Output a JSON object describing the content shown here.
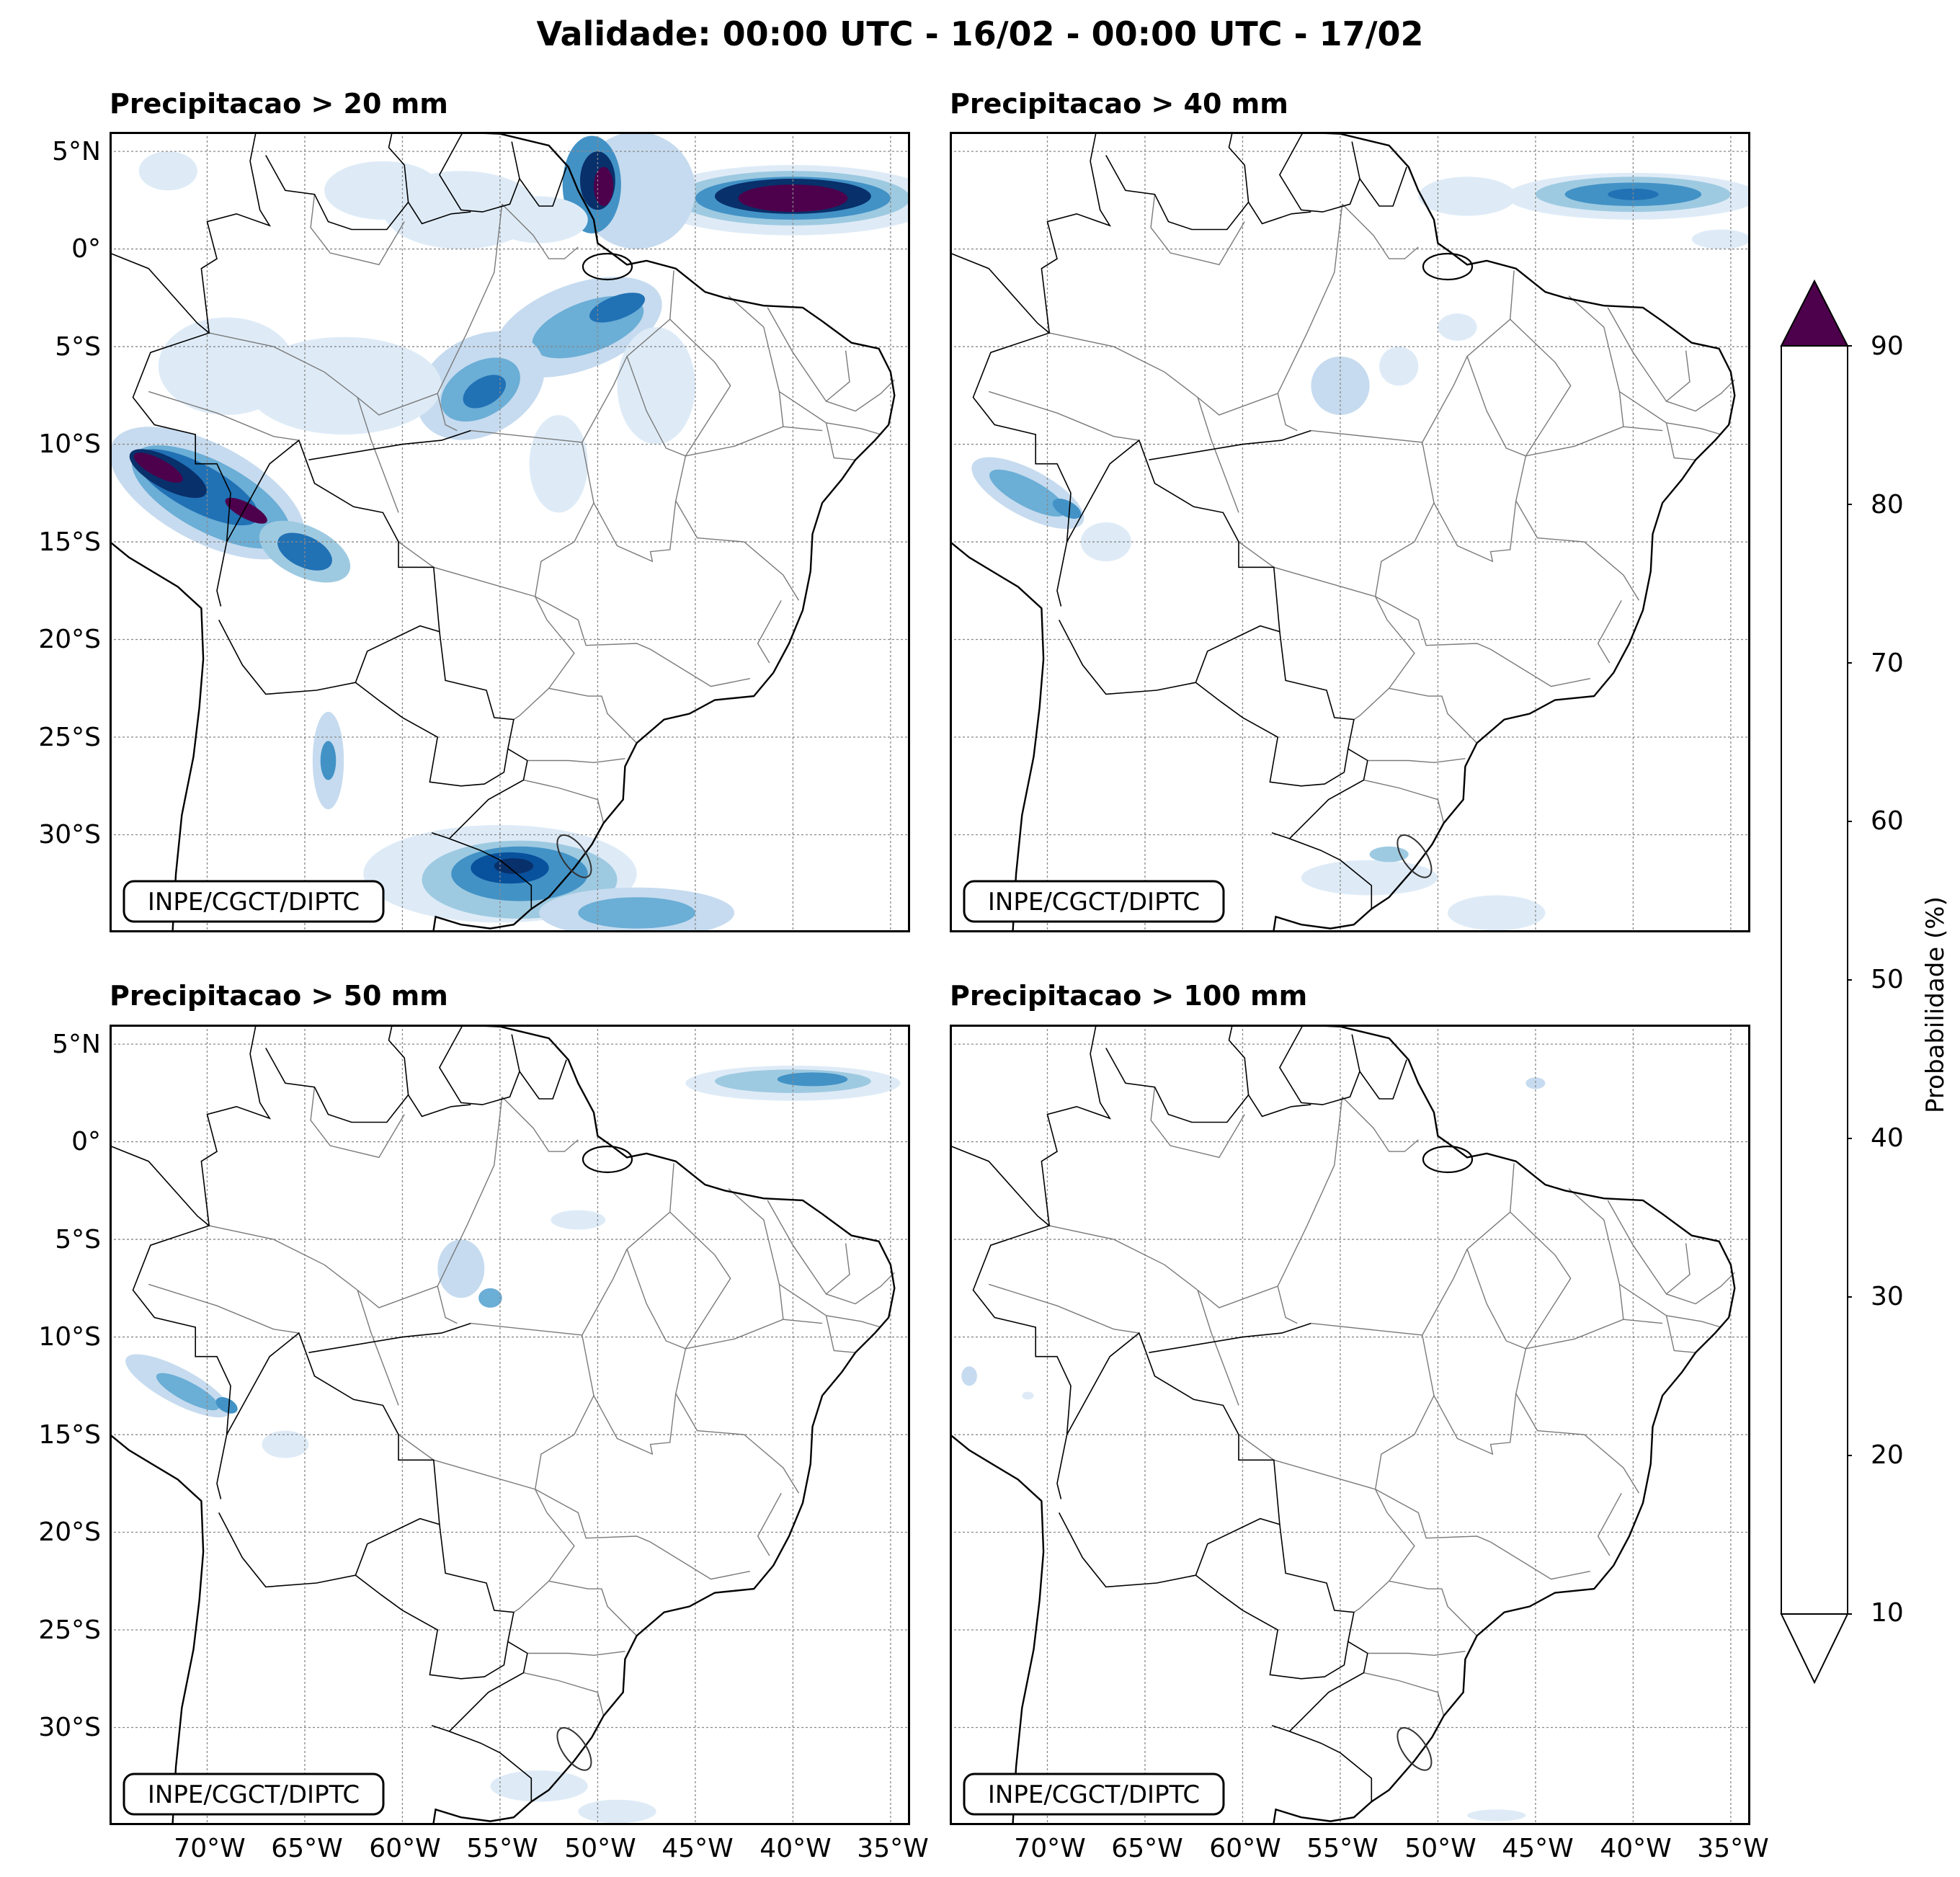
{
  "title": "Validade: 00:00 UTC - 16/02 - 00:00 UTC - 17/02",
  "credit": "INPE/CGCT/DIPTC",
  "lat_labels": [
    "5°N",
    "0°",
    "5°S",
    "10°S",
    "15°S",
    "20°S",
    "25°S",
    "30°S"
  ],
  "lon_labels": [
    "70°W",
    "65°W",
    "60°W",
    "55°W",
    "50°W",
    "45°W",
    "40°W",
    "35°W"
  ],
  "panels": [
    {
      "title": "Precipitacao > 20 mm"
    },
    {
      "title": "Precipitacao > 40 mm"
    },
    {
      "title": "Precipitacao > 50 mm"
    },
    {
      "title": "Precipitacao > 100 mm"
    }
  ],
  "colorbar": {
    "label": "Probabilidade (%)",
    "ticks": [
      "10",
      "20",
      "30",
      "40",
      "50",
      "60",
      "70",
      "80",
      "90"
    ],
    "colors": [
      "#deebf7",
      "#c6dbef",
      "#9ecae1",
      "#6baed6",
      "#4292c6",
      "#2171b5",
      "#08519c",
      "#08306b"
    ],
    "over_color": "#4d004b"
  },
  "map_extent": {
    "lon_min": -75,
    "lon_max": -34,
    "lat_min": -35,
    "lat_max": 6
  }
}
